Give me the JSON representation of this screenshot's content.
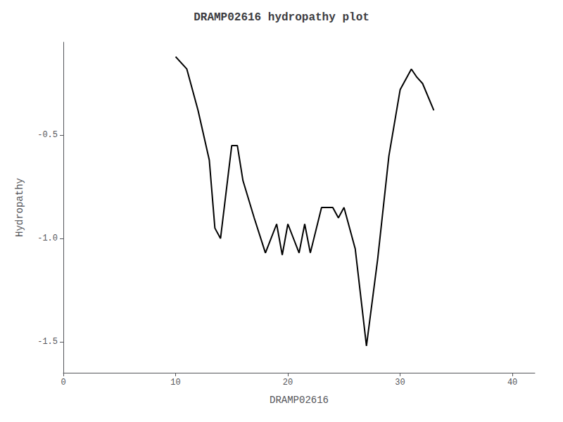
{
  "chart_data": {
    "type": "line",
    "title": "DRAMP02616 hydropathy plot",
    "x_label": "DRAMP02616",
    "y_label": "Hydropathy",
    "x": [
      10,
      11,
      12,
      13,
      13.5,
      14,
      15,
      15.5,
      16,
      17,
      18,
      19,
      19.5,
      20,
      21,
      21.5,
      22,
      23,
      24,
      24.5,
      25,
      26,
      27,
      28,
      29,
      30,
      31,
      31.5,
      32,
      33
    ],
    "values": [
      -0.12,
      -0.18,
      -0.38,
      -0.62,
      -0.95,
      -1.0,
      -0.55,
      -0.55,
      -0.72,
      -0.9,
      -1.07,
      -0.93,
      -1.08,
      -0.93,
      -1.07,
      -0.93,
      -1.07,
      -0.85,
      -0.85,
      -0.9,
      -0.85,
      -1.05,
      -1.52,
      -1.1,
      -0.6,
      -0.28,
      -0.18,
      -0.22,
      -0.25,
      -0.38
    ],
    "color": "black",
    "xlim": [
      0,
      42
    ],
    "xticks": [
      0,
      10,
      20,
      30,
      40
    ],
    "ylim": [
      -1.65,
      -0.05
    ],
    "yticks": [
      -1.5,
      {
        "value": -1.0,
        "label": "-1.0"
      },
      -0.5
    ],
    "grid": false
  }
}
